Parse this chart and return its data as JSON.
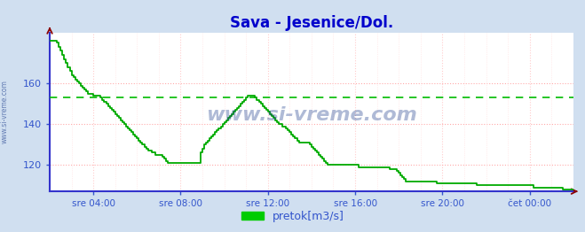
{
  "title": "Sava - Jesenice/Dol.",
  "title_color": "#0000cc",
  "bg_color": "#d0dff0",
  "plot_bg_color": "#ffffff",
  "line_color": "#00aa00",
  "line_width": 1.3,
  "avg_line_color": "#00bb00",
  "avg_line_value": 153,
  "grid_h_color": "#ffaaaa",
  "grid_v_color": "#ffcccc",
  "axis_color": "#3333cc",
  "tick_label_color": "#3355cc",
  "legend_label": "pretok[m3/s]",
  "legend_color": "#00cc00",
  "watermark": "www.si-vreme.com",
  "watermark_color": "#1a3a8a",
  "xlim": [
    0,
    288
  ],
  "ylim": [
    107,
    185
  ],
  "yticks": [
    120,
    140,
    160
  ],
  "xtick_positions": [
    24,
    72,
    120,
    168,
    216,
    264
  ],
  "xtick_labels": [
    "sre 04:00",
    "sre 08:00",
    "sre 12:00",
    "sre 16:00",
    "sre 20:00",
    "čet 00:00"
  ],
  "flow_data": [
    181,
    181,
    181,
    181,
    180,
    178,
    176,
    174,
    172,
    170,
    168,
    166,
    164,
    163,
    162,
    161,
    160,
    159,
    158,
    157,
    156,
    155,
    155,
    155,
    154,
    154,
    154,
    154,
    153,
    152,
    151,
    150,
    149,
    148,
    147,
    146,
    145,
    144,
    143,
    142,
    141,
    140,
    139,
    138,
    137,
    136,
    135,
    134,
    133,
    132,
    131,
    130,
    129,
    128,
    127,
    127,
    126,
    126,
    125,
    125,
    125,
    125,
    124,
    123,
    122,
    121,
    121,
    121,
    121,
    121,
    121,
    121,
    121,
    121,
    121,
    121,
    121,
    121,
    121,
    121,
    121,
    121,
    121,
    126,
    128,
    130,
    131,
    132,
    133,
    134,
    135,
    136,
    137,
    138,
    139,
    140,
    141,
    142,
    143,
    144,
    145,
    146,
    147,
    148,
    149,
    150,
    151,
    152,
    153,
    154,
    154,
    154,
    154,
    153,
    152,
    151,
    150,
    149,
    148,
    147,
    146,
    145,
    144,
    143,
    142,
    141,
    140,
    140,
    139,
    139,
    138,
    137,
    136,
    135,
    134,
    133,
    132,
    131,
    131,
    131,
    131,
    131,
    131,
    130,
    129,
    128,
    127,
    126,
    125,
    124,
    123,
    122,
    121,
    120,
    120,
    120,
    120,
    120,
    120,
    120,
    120,
    120,
    120,
    120,
    120,
    120,
    120,
    120,
    120,
    120,
    119,
    119,
    119,
    119,
    119,
    119,
    119,
    119,
    119,
    119,
    119,
    119,
    119,
    119,
    119,
    119,
    119,
    118,
    118,
    118,
    118,
    117,
    116,
    115,
    114,
    113,
    112,
    112,
    112,
    112,
    112,
    112,
    112,
    112,
    112,
    112,
    112,
    112,
    112,
    112,
    112,
    112,
    112,
    111,
    111,
    111,
    111,
    111,
    111,
    111,
    111,
    111,
    111,
    111,
    111,
    111,
    111,
    111,
    111,
    111,
    111,
    111,
    111,
    111,
    111,
    110,
    110,
    110,
    110,
    110,
    110,
    110,
    110,
    110,
    110,
    110,
    110,
    110,
    110,
    110,
    110,
    110,
    110,
    110,
    110,
    110,
    110,
    110,
    110,
    110,
    110,
    110,
    110,
    110,
    110,
    110,
    109,
    109,
    109,
    109,
    109,
    109,
    109,
    109,
    109,
    109,
    109,
    109,
    109,
    109,
    109,
    109,
    108,
    108,
    108,
    108,
    108,
    108,
    108
  ]
}
